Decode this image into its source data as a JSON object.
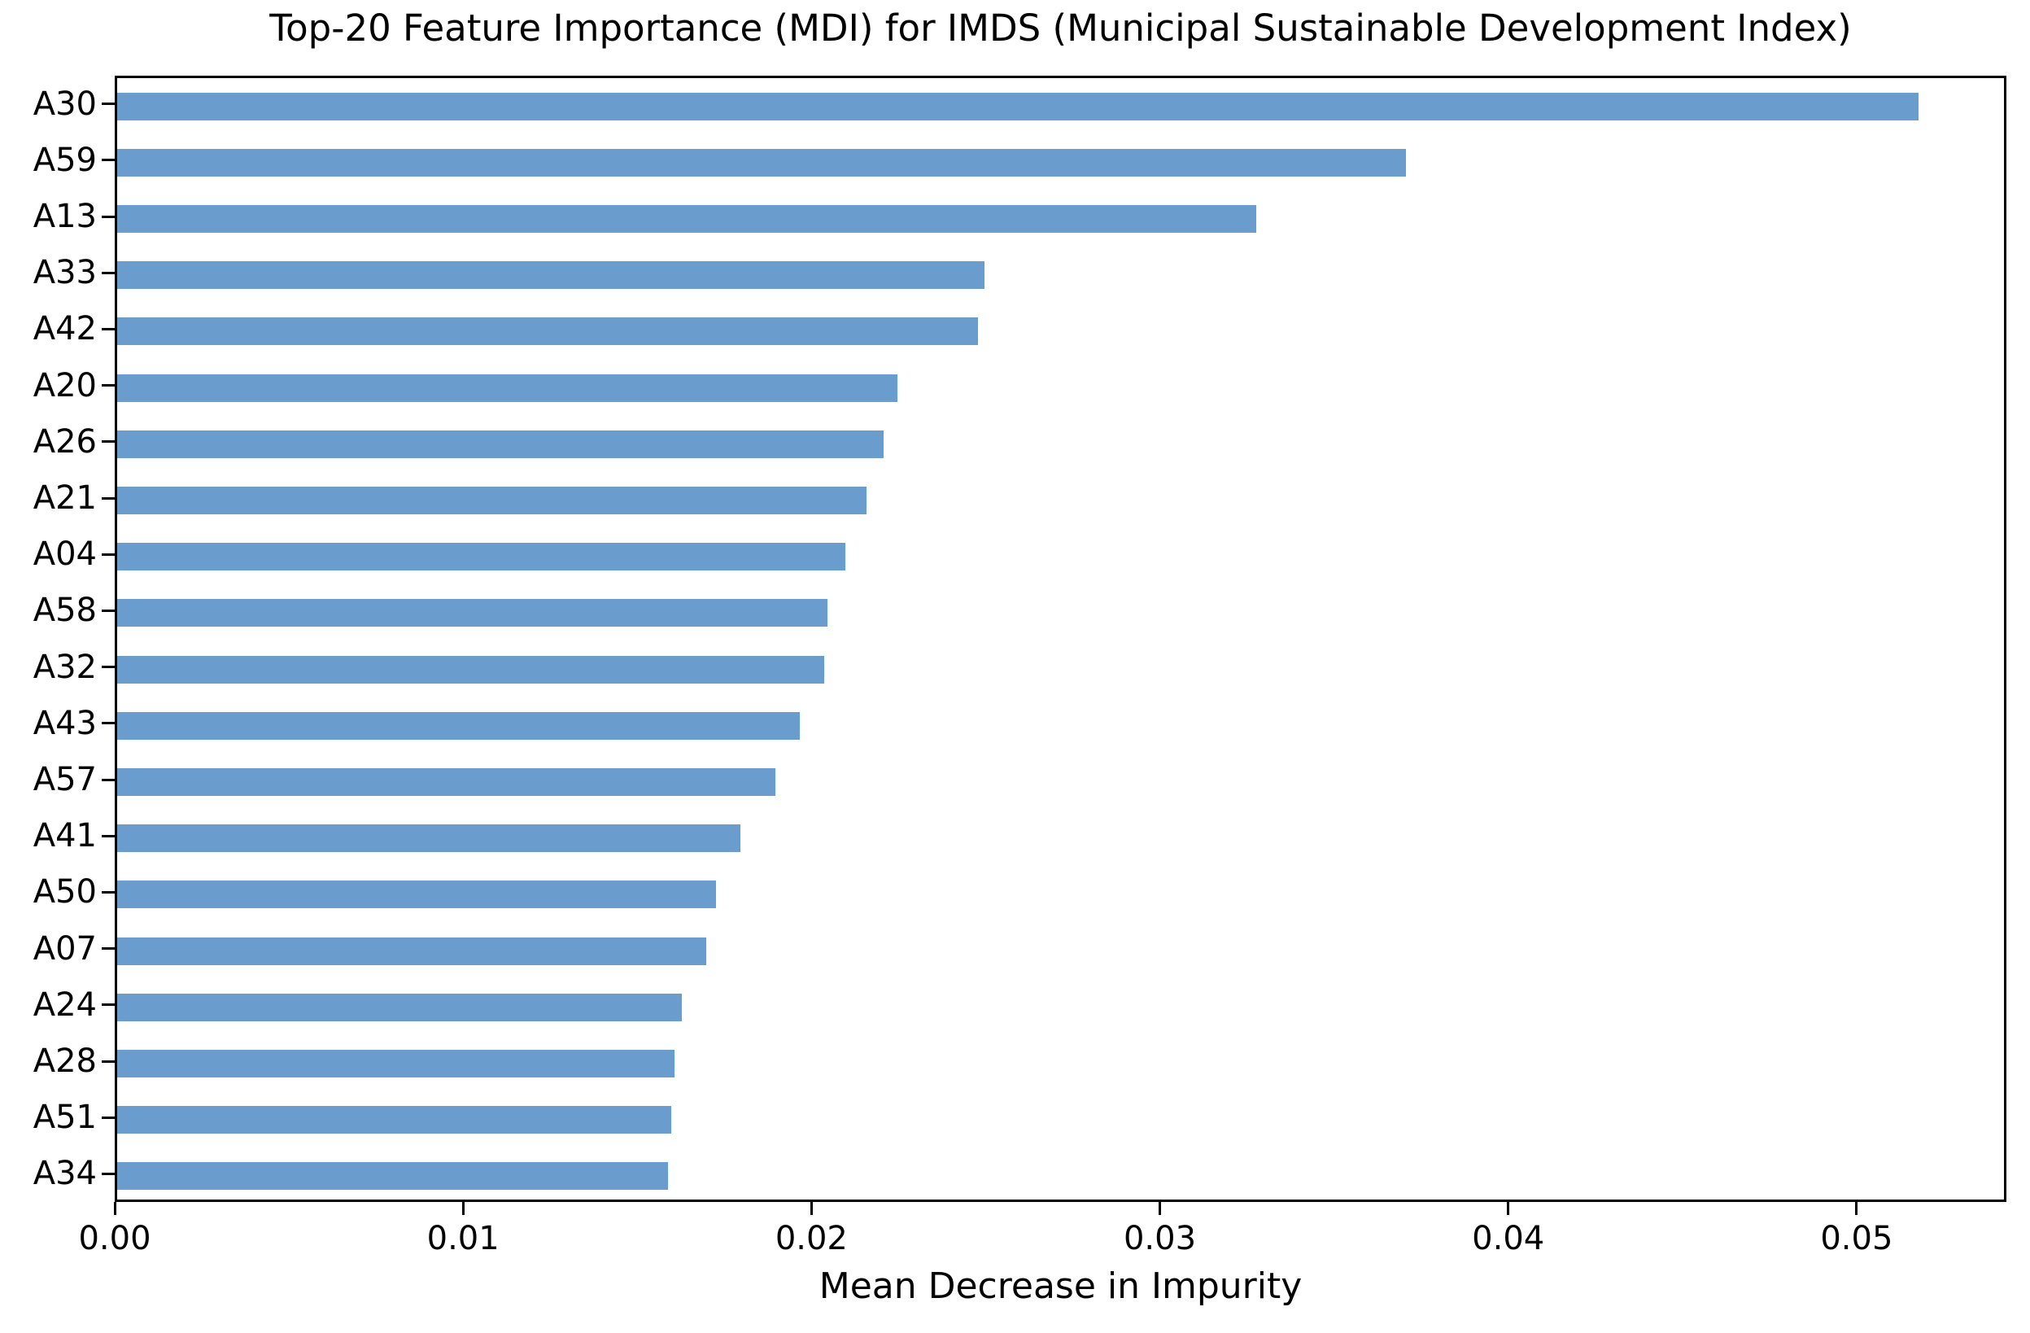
{
  "title": "Top-20 Feature Importance (MDI) for IMDS (Municipal Sustainable Development Index)",
  "xlabel": "Mean Decrease in Impurity",
  "colors": {
    "bar": "#6a9cce",
    "axis": "#000000",
    "background": "#ffffff",
    "text": "#000000"
  },
  "chart_data": {
    "type": "bar",
    "orientation": "horizontal",
    "title": "Top-20 Feature Importance (MDI) for IMDS (Municipal Sustainable Development Index)",
    "xlabel": "Mean Decrease in Impurity",
    "ylabel": "",
    "categories": [
      "A30",
      "A59",
      "A13",
      "A33",
      "A42",
      "A20",
      "A26",
      "A21",
      "A04",
      "A58",
      "A32",
      "A43",
      "A57",
      "A41",
      "A50",
      "A07",
      "A24",
      "A28",
      "A51",
      "A34"
    ],
    "values": [
      0.0517,
      0.037,
      0.0327,
      0.0249,
      0.0247,
      0.0224,
      0.022,
      0.0215,
      0.0209,
      0.0204,
      0.0203,
      0.0196,
      0.0189,
      0.0179,
      0.0172,
      0.0169,
      0.0162,
      0.016,
      0.0159,
      0.0158
    ],
    "xlim": [
      0,
      0.0543
    ],
    "x_tick_values": [
      0.0,
      0.01,
      0.02,
      0.03,
      0.04,
      0.05
    ],
    "x_tick_labels": [
      "0.00",
      "0.01",
      "0.02",
      "0.03",
      "0.04",
      "0.05"
    ],
    "grid": false,
    "legend": null,
    "bar_color": "#6a9cce"
  }
}
